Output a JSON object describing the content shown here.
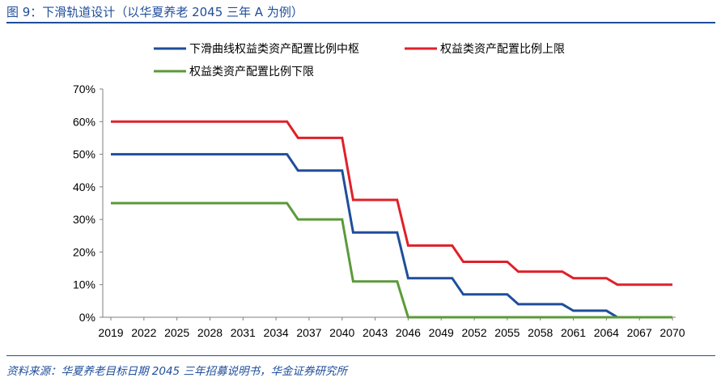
{
  "figure": {
    "title": "图 9：下滑轨道设计（以华夏养老 2045 三年 A 为例）",
    "source": "资料来源：华夏养老目标日期 2045 三年招募说明书，华金证券研究所"
  },
  "chart_data": {
    "type": "line",
    "title": "",
    "xlabel": "",
    "ylabel": "",
    "ylim": [
      0,
      70
    ],
    "yticks": [
      "0%",
      "10%",
      "20%",
      "30%",
      "40%",
      "50%",
      "60%",
      "70%"
    ],
    "xlim": [
      2019,
      2070
    ],
    "xticks": [
      "2019",
      "2022",
      "2025",
      "2028",
      "2031",
      "2034",
      "2037",
      "2040",
      "2043",
      "2046",
      "2049",
      "2052",
      "2055",
      "2058",
      "2061",
      "2064",
      "2067",
      "2070"
    ],
    "grid": false,
    "legend_position": "top",
    "series": [
      {
        "name": "下滑曲线权益类资产配置比例中枢",
        "color": "#1f4e9a",
        "points": [
          [
            2019,
            50
          ],
          [
            2035,
            50
          ],
          [
            2036,
            45
          ],
          [
            2040,
            45
          ],
          [
            2041,
            26
          ],
          [
            2045,
            26
          ],
          [
            2046,
            12
          ],
          [
            2050,
            12
          ],
          [
            2051,
            7
          ],
          [
            2055,
            7
          ],
          [
            2056,
            4
          ],
          [
            2060,
            4
          ],
          [
            2061,
            2
          ],
          [
            2064,
            2
          ],
          [
            2065,
            0
          ]
        ]
      },
      {
        "name": "权益类资产配置比例上限",
        "color": "#e0202a",
        "points": [
          [
            2019,
            60
          ],
          [
            2035,
            60
          ],
          [
            2036,
            55
          ],
          [
            2040,
            55
          ],
          [
            2041,
            36
          ],
          [
            2045,
            36
          ],
          [
            2046,
            22
          ],
          [
            2050,
            22
          ],
          [
            2051,
            17
          ],
          [
            2055,
            17
          ],
          [
            2056,
            14
          ],
          [
            2060,
            14
          ],
          [
            2061,
            12
          ],
          [
            2064,
            12
          ],
          [
            2065,
            10
          ],
          [
            2070,
            10
          ]
        ]
      },
      {
        "name": "权益类资产配置比例下限",
        "color": "#5b9a3a",
        "points": [
          [
            2019,
            35
          ],
          [
            2035,
            35
          ],
          [
            2036,
            30
          ],
          [
            2040,
            30
          ],
          [
            2041,
            11
          ],
          [
            2045,
            11
          ],
          [
            2046,
            0
          ],
          [
            2070,
            0
          ]
        ]
      }
    ]
  }
}
